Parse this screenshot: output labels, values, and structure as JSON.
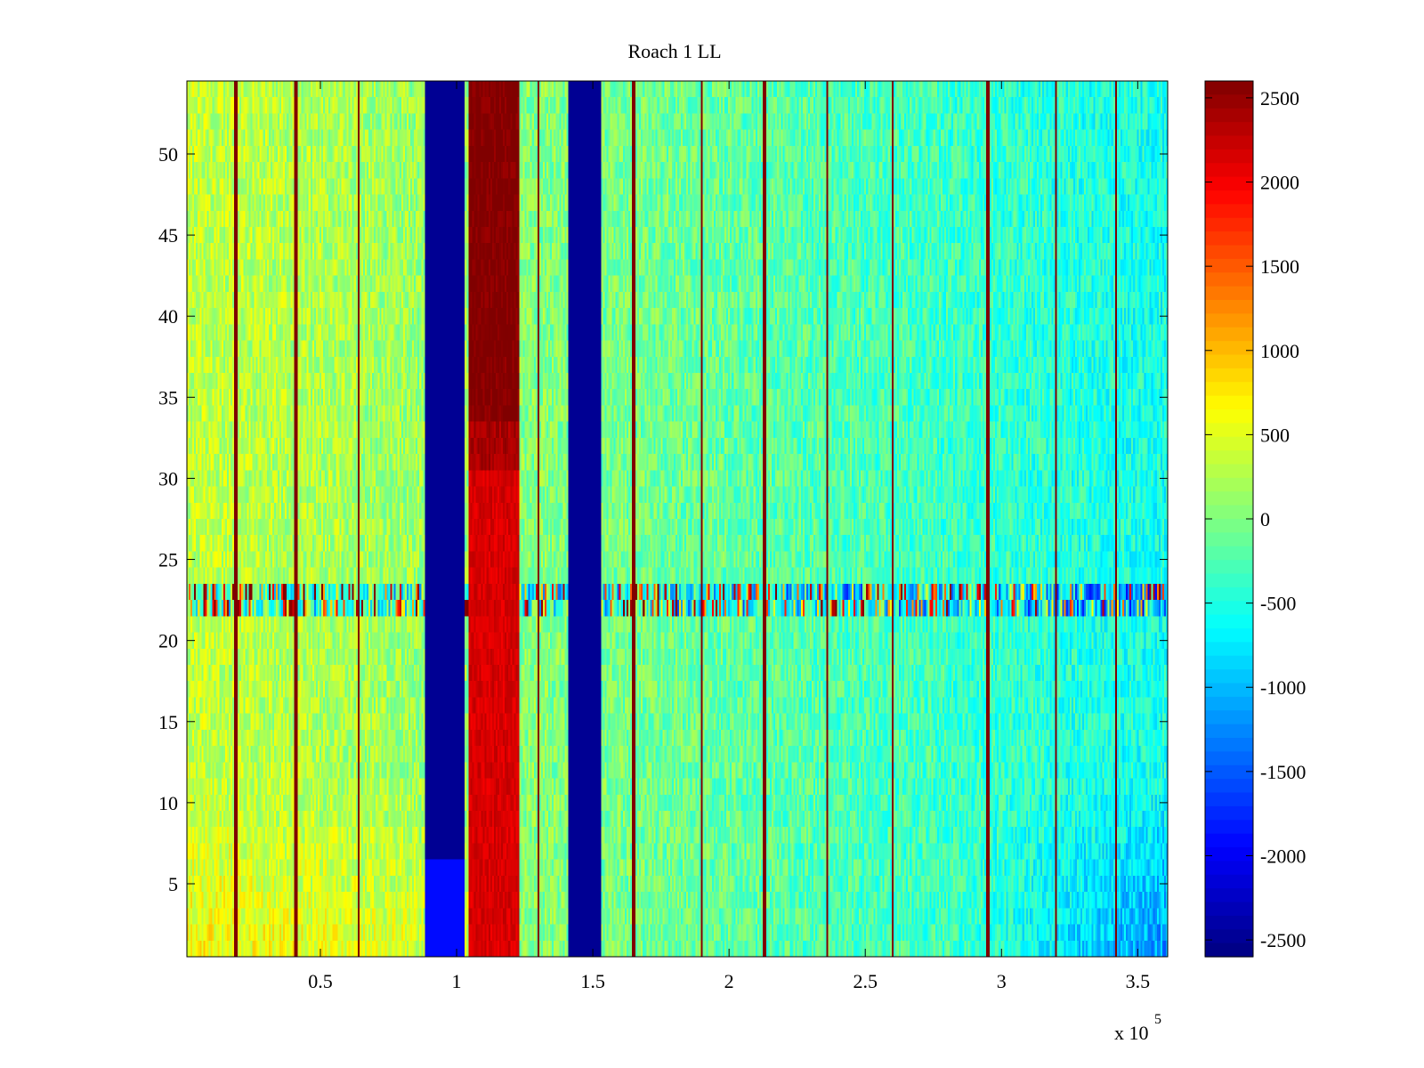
{
  "chart_data": {
    "type": "heatmap",
    "title": "Roach 1 LL",
    "xlabel": "",
    "ylabel": "",
    "x_multiplier_label": "x 10",
    "x_multiplier_exponent": "5",
    "xlim": [
      0.01,
      3.61
    ],
    "ylim": [
      0.5,
      54.5
    ],
    "xticks": [
      0.5,
      1,
      1.5,
      2,
      2.5,
      3,
      3.5
    ],
    "xtick_labels": [
      "0.5",
      "1",
      "1.5",
      "2",
      "2.5",
      "3",
      "3.5"
    ],
    "yticks": [
      5,
      10,
      15,
      20,
      25,
      30,
      35,
      40,
      45,
      50
    ],
    "ytick_labels": [
      "5",
      "10",
      "15",
      "20",
      "25",
      "30",
      "35",
      "40",
      "45",
      "50"
    ],
    "colorbar": {
      "clim": [
        -2600,
        2600
      ],
      "ticks": [
        2500,
        2000,
        1500,
        1000,
        500,
        0,
        -500,
        -1000,
        -1500,
        -2000,
        -2500
      ],
      "tick_labels": [
        "2500",
        "2000",
        "1500",
        "1000",
        "500",
        "0",
        "-500",
        "-1000",
        "-1500",
        "-2000",
        "-2500"
      ]
    },
    "colormap": "jet",
    "rows": 54,
    "bands": [
      {
        "x_start": 0.885,
        "x_end": 1.03,
        "value": -2500,
        "label": "strong negative band"
      },
      {
        "x_start": 1.045,
        "x_end": 1.23,
        "value": 2300,
        "label": "strong positive band"
      },
      {
        "x_start": 1.41,
        "x_end": 1.53,
        "value": -2500,
        "label": "strong negative band"
      }
    ],
    "spike_columns_x": [
      0.19,
      0.41,
      0.64,
      1.3,
      1.65,
      1.9,
      2.13,
      2.36,
      2.6,
      2.95,
      3.2,
      3.42
    ],
    "noisy_rows": [
      22,
      23
    ],
    "trend": "values near +300 at left and bottom, decreasing to about -700 toward right, lower-right most negative"
  }
}
